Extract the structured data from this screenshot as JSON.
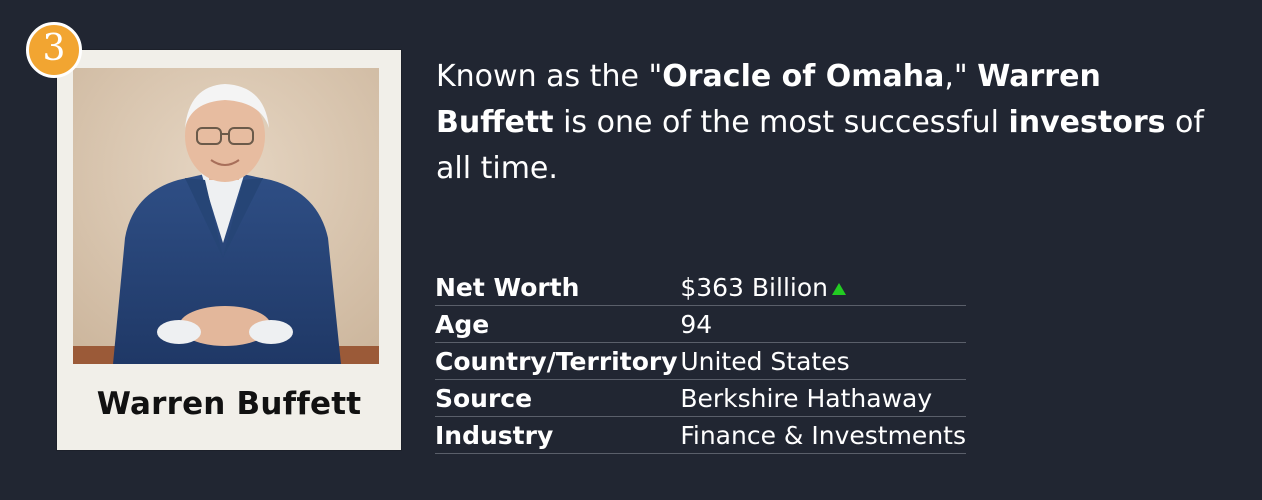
{
  "rank": "3",
  "profile": {
    "name": "Warren Buffett",
    "photo_alt": "Warren Buffett portrait"
  },
  "description": {
    "p1": "Known as the \"",
    "b1": "Oracle of Omaha",
    "p2": ",\" ",
    "b2": "Warren Buffett",
    "p3": " is one of the most successful ",
    "b3": "investors",
    "p4": " of all time."
  },
  "stats": [
    {
      "label": "Net Worth",
      "value": "$363 Billion",
      "trend": "up"
    },
    {
      "label": "Age",
      "value": "94"
    },
    {
      "label": "Country/Territory",
      "value": "United States"
    },
    {
      "label": "Source",
      "value": "Berkshire Hathaway"
    },
    {
      "label": "Industry",
      "value": "Finance & Investments"
    }
  ],
  "colors": {
    "background": "#212632",
    "badge": "#f2a531",
    "card": "#f1efe9",
    "trend_up": "#22cc22"
  }
}
